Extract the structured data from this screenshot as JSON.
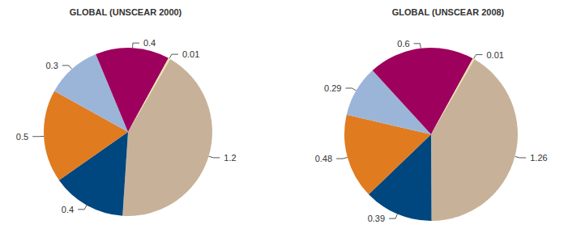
{
  "chart_data": [
    {
      "type": "pie",
      "title": "GLOBAL (UNSCEAR 2000)",
      "values": [
        1.2,
        0.4,
        0.5,
        0.3,
        0.4,
        0.01
      ],
      "colors": [
        "#c7b299",
        "#00467f",
        "#e07b20",
        "#9bb5d8",
        "#9e005d",
        "#ece3a8"
      ],
      "data_labels": true
    },
    {
      "type": "pie",
      "title": "GLOBAL (UNSCEAR 2008)",
      "values": [
        1.26,
        0.39,
        0.48,
        0.29,
        0.6,
        0.01
      ],
      "colors": [
        "#c7b299",
        "#00467f",
        "#e07b20",
        "#9bb5d8",
        "#9e005d",
        "#ece3a8"
      ],
      "data_labels": true
    }
  ]
}
